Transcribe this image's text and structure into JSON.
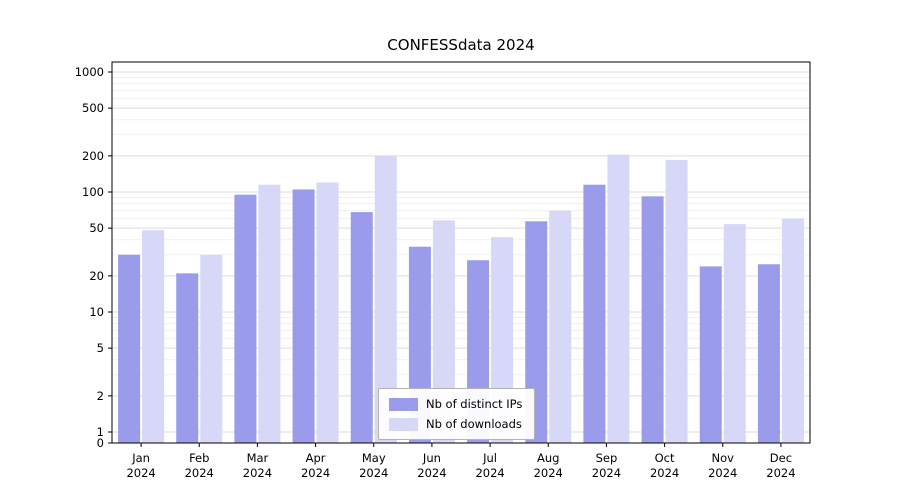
{
  "title": "CONFESSdata 2024",
  "chart_data": {
    "type": "bar",
    "title": "CONFESSdata 2024",
    "categories": [
      "Jan",
      "Feb",
      "Mar",
      "Apr",
      "May",
      "Jun",
      "Jul",
      "Aug",
      "Sep",
      "Oct",
      "Nov",
      "Dec"
    ],
    "year_label": "2024",
    "series": [
      {
        "name": "Nb of distinct IPs",
        "color": "#9b9bec",
        "values": [
          30,
          21,
          95,
          105,
          68,
          35,
          27,
          57,
          115,
          92,
          24,
          25
        ]
      },
      {
        "name": "Nb of downloads",
        "color": "#d7d7f8",
        "values": [
          48,
          30,
          115,
          120,
          200,
          58,
          42,
          70,
          205,
          185,
          54,
          60
        ]
      }
    ],
    "yticks": [
      0,
      1,
      2,
      5,
      10,
      20,
      50,
      100,
      200,
      500,
      1000
    ],
    "ylim": [
      0,
      1000
    ],
    "yscale": "symlog",
    "grid": true,
    "legend_position": "lower center"
  },
  "colors": {
    "axis": "#000000",
    "grid_major": "#dedede",
    "grid_minor": "#f1f1f1",
    "background": "#ffffff"
  }
}
